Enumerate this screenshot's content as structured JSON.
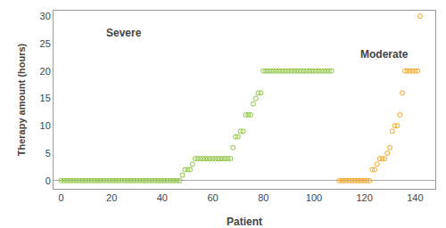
{
  "chart_data": {
    "type": "scatter",
    "xlabel": "Patient",
    "ylabel": "Therapy amount (hours)",
    "series": [
      {
        "color": "#8dc63f",
        "marker": "circle-open",
        "x": [
          0,
          1,
          2,
          3,
          4,
          5,
          6,
          7,
          8,
          9,
          10,
          11,
          12,
          13,
          14,
          15,
          16,
          17,
          18,
          19,
          20,
          21,
          22,
          23,
          24,
          25,
          26,
          27,
          28,
          29,
          30,
          31,
          32,
          33,
          34,
          35,
          36,
          37,
          38,
          39,
          40,
          41,
          42,
          43,
          44,
          45,
          46,
          47,
          48,
          49,
          50,
          51,
          52,
          53,
          54,
          55,
          56,
          57,
          58,
          59,
          60,
          61,
          62,
          63,
          64,
          65,
          66,
          67,
          68,
          69,
          70,
          71,
          72,
          73,
          74,
          75,
          76,
          77,
          78,
          79,
          80,
          81,
          82,
          83,
          84,
          85,
          86,
          87,
          88,
          89,
          90,
          91,
          92,
          93,
          94,
          95,
          96,
          97,
          98,
          99,
          100,
          101,
          102,
          103,
          104,
          105,
          106,
          107
        ],
        "values": [
          0,
          0,
          0,
          0,
          0,
          0,
          0,
          0,
          0,
          0,
          0,
          0,
          0,
          0,
          0,
          0,
          0,
          0,
          0,
          0,
          0,
          0,
          0,
          0,
          0,
          0,
          0,
          0,
          0,
          0,
          0,
          0,
          0,
          0,
          0,
          0,
          0,
          0,
          0,
          0,
          0,
          0,
          0,
          0,
          0,
          0,
          0,
          0,
          1,
          2,
          2,
          2,
          3,
          4,
          4,
          4,
          4,
          4,
          4,
          4,
          4,
          4,
          4,
          4,
          4,
          4,
          4,
          4,
          6,
          8,
          8,
          9,
          9,
          12,
          12,
          12,
          14,
          15,
          16,
          16,
          20,
          20,
          20,
          20,
          20,
          20,
          20,
          20,
          20,
          20,
          20,
          20,
          20,
          20,
          20,
          20,
          20,
          20,
          20,
          20,
          20,
          20,
          20,
          20,
          20,
          20,
          20,
          20
        ]
      },
      {
        "color": "#f5a623",
        "marker": "circle-open",
        "x": [
          110,
          111,
          112,
          113,
          114,
          115,
          116,
          117,
          118,
          119,
          120,
          121,
          122,
          123,
          124,
          125,
          126,
          127,
          128,
          129,
          130,
          131,
          132,
          133,
          134,
          135,
          136,
          137,
          138,
          139,
          140,
          141,
          142
        ],
        "values": [
          0,
          0,
          0,
          0,
          0,
          0,
          0,
          0,
          0,
          0,
          0,
          0,
          0,
          2,
          2,
          3,
          4,
          4,
          4,
          5,
          6,
          9,
          10,
          10,
          12,
          16,
          20,
          20,
          20,
          20,
          20,
          20,
          30
        ]
      }
    ],
    "xlim": [
      -3,
      148
    ],
    "ylim": [
      -1.5,
      31
    ],
    "xticks": [
      0,
      20,
      40,
      60,
      80,
      100,
      120,
      140
    ],
    "yticks": [
      0,
      5,
      10,
      15,
      20,
      25,
      30
    ],
    "grid": false,
    "annotations": [
      {
        "text": "Severe",
        "x": 25,
        "y": 27
      },
      {
        "text": "Moderate",
        "x": 128,
        "y": 23
      }
    ]
  }
}
